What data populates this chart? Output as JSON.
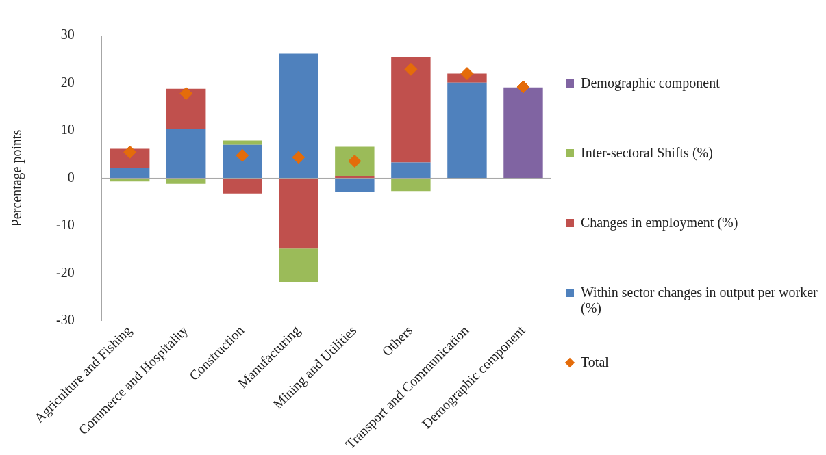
{
  "chart_data": {
    "type": "bar",
    "stacked": true,
    "ylabel": "Percentage points",
    "categories": [
      "Agriculture and Fishing",
      "Commerce and Hospitality",
      "Construction",
      "Manufacturing",
      "Mining and Utilities",
      "Others",
      "Transport and Communication",
      "Demographic component"
    ],
    "series": [
      {
        "name": "Within sector changes in output per worker (%)",
        "color": "#4f81bd",
        "values": [
          2.2,
          10.3,
          7.0,
          26.2,
          -2.9,
          3.3,
          20.1,
          null
        ]
      },
      {
        "name": "Changes in employment (%)",
        "color": "#c0504d",
        "values": [
          4.0,
          8.5,
          -3.2,
          -14.8,
          0.5,
          22.2,
          1.9,
          null
        ]
      },
      {
        "name": "Inter-sectoral Shifts (%)",
        "color": "#9bbb59",
        "values": [
          -0.7,
          -1.2,
          0.9,
          -7.0,
          6.1,
          -2.7,
          null,
          null
        ]
      },
      {
        "name": "Demographic component",
        "color": "#8064a2",
        "values": [
          null,
          null,
          null,
          null,
          null,
          null,
          null,
          19.1
        ]
      },
      {
        "name": "Total",
        "type": "scatter",
        "color": "#e46c0a",
        "marker": "diamond",
        "x": [
          "Agriculture and Fishing",
          "Commerce and Hospitality",
          "Construction",
          "Manufacturing",
          "Mining and Utilities",
          "Others",
          "Transport and Communication",
          "Demographic component"
        ],
        "values": [
          5.5,
          17.8,
          4.8,
          4.4,
          3.6,
          22.9,
          22.0,
          19.2
        ]
      }
    ],
    "ylim": [
      -30,
      30
    ],
    "yticks": [
      -30,
      -20,
      -10,
      0,
      10,
      20,
      30
    ],
    "grid": false,
    "ref_lines": [
      {
        "axis": "y",
        "value": 0,
        "color": "#a6a6a6"
      }
    ],
    "legend": "right"
  }
}
